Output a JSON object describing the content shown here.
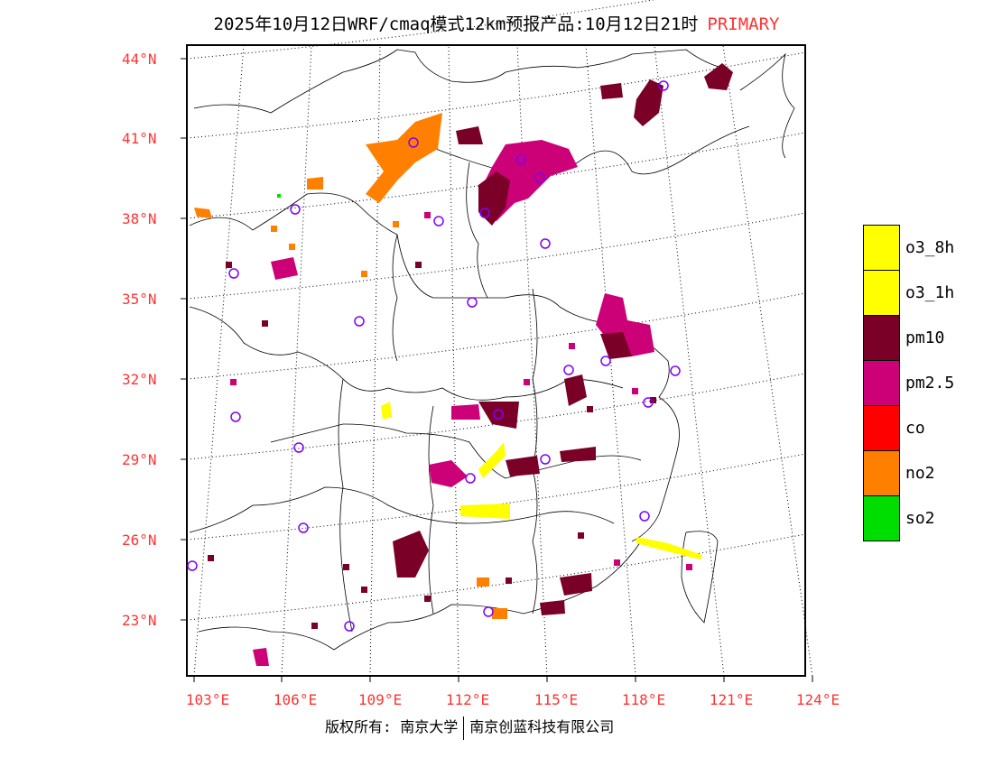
{
  "header": {
    "title": "2025年10月12日WRF/cmaq模式12km预报产品:10月12日21时",
    "pollutant_type": "PRIMARY"
  },
  "map": {
    "lat_labels": [
      "44°N",
      "41°N",
      "38°N",
      "35°N",
      "32°N",
      "29°N",
      "26°N",
      "23°N"
    ],
    "lon_labels": [
      "103°E",
      "106°E",
      "109°E",
      "112°E",
      "115°E",
      "118°E",
      "121°E",
      "124°E"
    ]
  },
  "legend": {
    "items": [
      {
        "label": "o3_8h",
        "color": "#ffff00"
      },
      {
        "label": "o3_1h",
        "color": "#ffff00"
      },
      {
        "label": "pm10",
        "color": "#7a0028"
      },
      {
        "label": "pm2.5",
        "color": "#cc0077"
      },
      {
        "label": "co",
        "color": "#ff0000"
      },
      {
        "label": "no2",
        "color": "#ff8000"
      },
      {
        "label": "so2",
        "color": "#00dd00"
      }
    ]
  },
  "footer": {
    "copyright": "版权所有: 南京大学",
    "company": "南京创蓝科技有限公司"
  }
}
